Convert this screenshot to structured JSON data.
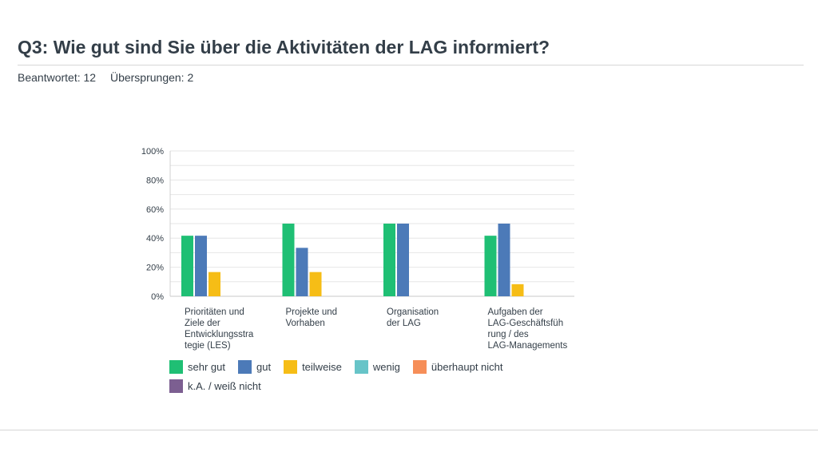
{
  "header": {
    "title": "Q3: Wie gut sind Sie über die Aktivitäten der LAG informiert?",
    "answered": "Beantwortet: 12",
    "skipped": "Übersprungen: 2"
  },
  "chart_data": {
    "type": "bar",
    "title": "Q3: Wie gut sind Sie über die Aktivitäten der LAG informiert?",
    "xlabel": "",
    "ylabel": "",
    "ylim": [
      0,
      100
    ],
    "y_tick_labels": [
      "0%",
      "20%",
      "40%",
      "60%",
      "80%",
      "100%"
    ],
    "categories": [
      [
        "Prioritäten und",
        "Ziele der",
        "Entwicklungsstra",
        "tegie (LES)"
      ],
      [
        "Projekte und",
        "Vorhaben"
      ],
      [
        "Organisation",
        "der LAG"
      ],
      [
        "Aufgaben der",
        "LAG-Geschäftsfüh",
        "rung / des",
        "LAG-Managements"
      ]
    ],
    "series": [
      {
        "name": "sehr gut",
        "color": "#1fbf74",
        "values": [
          41.67,
          50,
          50,
          41.67
        ]
      },
      {
        "name": "gut",
        "color": "#4c7ab8",
        "values": [
          41.67,
          33.33,
          50,
          50
        ]
      },
      {
        "name": "teilweise",
        "color": "#f6bd16",
        "values": [
          16.67,
          16.67,
          0,
          8.33
        ]
      },
      {
        "name": "wenig",
        "color": "#67c4c8",
        "values": [
          0,
          0,
          0,
          0
        ]
      },
      {
        "name": "überhaupt nicht",
        "color": "#f68e58",
        "values": [
          0,
          0,
          0,
          0
        ]
      },
      {
        "name": "k.A. / weiß nicht",
        "color": "#7c5f91",
        "values": [
          0,
          0,
          0,
          0
        ]
      }
    ],
    "grid": true,
    "legend_position": "bottom"
  }
}
